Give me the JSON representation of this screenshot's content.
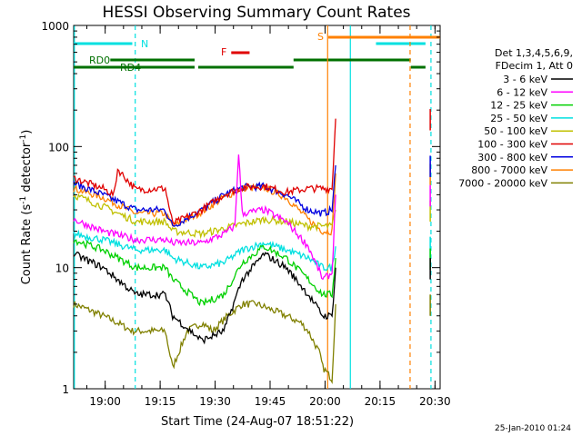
{
  "chart_data": {
    "type": "line",
    "title": "HESSI Observing Summary Count Rates",
    "xlabel": "Start Time (24-Aug-07 18:51:22)",
    "ylabel_main": "Count Rate (s",
    "ylabel_sup1": "-1",
    "ylabel_mid": " detector",
    "ylabel_sup2": "-1",
    "ylabel_end": ")",
    "yscale": "log",
    "ylim": [
      1,
      1000
    ],
    "x_unit": "minutes since 18:51:22",
    "xlim": [
      0,
      100
    ],
    "x_ticks": [
      {
        "x": 8.6,
        "label": "19:00"
      },
      {
        "x": 23.6,
        "label": "19:15"
      },
      {
        "x": 38.6,
        "label": "19:30"
      },
      {
        "x": 53.6,
        "label": "19:45"
      },
      {
        "x": 68.6,
        "label": "20:00"
      },
      {
        "x": 83.6,
        "label": "20:15"
      },
      {
        "x": 98.6,
        "label": "20:30"
      }
    ],
    "y_ticks": [
      {
        "y": 1,
        "label": "1"
      },
      {
        "y": 10,
        "label": "10"
      },
      {
        "y": 100,
        "label": "100"
      },
      {
        "y": 1000,
        "label": "1000"
      }
    ],
    "timestamp": "25-Jan-2010 01:24",
    "legend": {
      "header1": "Det 1,3,4,5,6,9,",
      "header2": "FDecim 1, Att 0",
      "placement": "right"
    },
    "flags": {
      "N": {
        "label": "N",
        "color": "#00e0e0"
      },
      "RD0": {
        "label": "RD0",
        "color": "#007000"
      },
      "RD4": {
        "label": "RD4",
        "color": "#007000"
      },
      "F": {
        "label": "F",
        "color": "#e00000"
      },
      "S": {
        "label": "S",
        "color": "#ff8000"
      }
    },
    "series": [
      {
        "name": "3 - 6 keV",
        "color": "#000000",
        "x": [
          0,
          8,
          17,
          25,
          27,
          35,
          41,
          46,
          52,
          58,
          64,
          68,
          70.5,
          71.5
        ],
        "values": [
          13,
          10,
          6,
          6,
          4,
          2.5,
          3,
          8,
          13,
          10,
          6,
          4,
          4,
          10
        ]
      },
      {
        "name": "6 - 12 keV",
        "color": "#ff00ff",
        "x": [
          0,
          8,
          17,
          25,
          27,
          35,
          41,
          44,
          45,
          46,
          52,
          58,
          64,
          68,
          70.5,
          71.5
        ],
        "values": [
          25,
          20,
          17,
          17,
          16,
          16,
          19,
          22,
          90,
          28,
          30,
          24,
          15,
          8,
          9,
          40
        ]
      },
      {
        "name": "12 - 25 keV",
        "color": "#00d000",
        "x": [
          0,
          8,
          17,
          25,
          27,
          35,
          41,
          46,
          52,
          58,
          64,
          68,
          70.5,
          71.5
        ],
        "values": [
          17,
          14,
          10,
          10,
          8,
          5,
          6,
          11,
          15,
          12,
          8,
          6,
          6,
          12
        ]
      },
      {
        "name": "25 - 50 keV",
        "color": "#00e0e0",
        "x": [
          0,
          8,
          17,
          25,
          27,
          35,
          41,
          46,
          52,
          58,
          64,
          68,
          70.5,
          71.5
        ],
        "values": [
          19,
          17,
          14,
          14,
          12,
          10,
          11,
          14,
          16,
          14,
          12,
          10,
          10,
          15
        ]
      },
      {
        "name": "50 - 100 keV",
        "color": "#c0c000",
        "x": [
          0,
          8,
          17,
          25,
          27,
          35,
          41,
          46,
          52,
          58,
          64,
          68,
          70.5,
          71.5
        ],
        "values": [
          40,
          32,
          24,
          24,
          20,
          19,
          21,
          23,
          25,
          24,
          22,
          22,
          22,
          30
        ]
      },
      {
        "name": "100 - 300 keV",
        "color": "#e00000",
        "x": [
          0,
          8,
          11,
          12,
          17,
          25,
          27,
          35,
          41,
          46,
          52,
          58,
          64,
          68,
          70.5,
          71.5
        ],
        "values": [
          55,
          45,
          40,
          65,
          44,
          45,
          23,
          30,
          40,
          46,
          47,
          42,
          45,
          45,
          45,
          170
        ]
      },
      {
        "name": "300 - 800 keV",
        "color": "#0000e0",
        "x": [
          0,
          8,
          17,
          25,
          27,
          35,
          41,
          46,
          52,
          58,
          64,
          68,
          70.5,
          71.5
        ],
        "values": [
          50,
          40,
          30,
          30,
          22,
          30,
          40,
          46,
          47,
          40,
          30,
          28,
          30,
          70
        ]
      },
      {
        "name": "800 - 7000 keV",
        "color": "#ff8000",
        "x": [
          0,
          8,
          17,
          25,
          27,
          35,
          41,
          46,
          52,
          58,
          64,
          68,
          70.5,
          71.5
        ],
        "values": [
          45,
          38,
          28,
          28,
          22,
          29,
          38,
          45,
          46,
          38,
          25,
          20,
          20,
          60
        ]
      },
      {
        "name": "7000 - 20000 keV",
        "color": "#808000",
        "x": [
          0,
          4,
          8,
          12,
          16,
          20,
          25,
          27,
          31,
          35,
          38,
          42,
          46,
          50,
          54,
          58,
          62,
          64,
          67,
          68,
          70.5,
          71.5
        ],
        "values": [
          5,
          4.5,
          4,
          3.5,
          3,
          3,
          3,
          1.5,
          3,
          3.5,
          3,
          4,
          5,
          5,
          4.5,
          4,
          3.5,
          3,
          2,
          1.5,
          1.2,
          5
        ]
      }
    ]
  }
}
